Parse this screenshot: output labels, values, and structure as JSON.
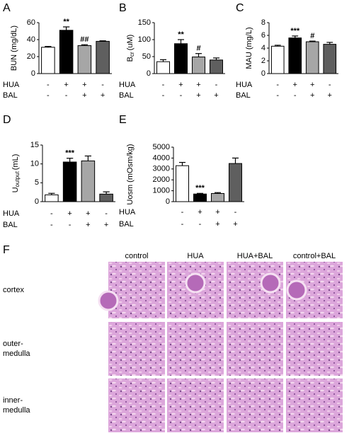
{
  "chart_data": [
    {
      "type": "bar",
      "panel": "A",
      "ylabel": [
        {
          "text": "BUN (mg/dL)"
        }
      ],
      "ylim": [
        0,
        60
      ],
      "yticks": [
        0,
        20,
        40,
        60
      ],
      "values": [
        31,
        51,
        33,
        38
      ],
      "errors": [
        1,
        4,
        1,
        0.6
      ],
      "significance": [
        null,
        "**",
        "##",
        null
      ],
      "colors": [
        "#ffffff",
        "#000000",
        "#a6a6a6",
        "#5f5f5f"
      ],
      "treatments": [
        {
          "name": "HUA",
          "signs": [
            "-",
            "+",
            "+",
            "-"
          ]
        },
        {
          "name": "BAL",
          "signs": [
            "-",
            "-",
            "+",
            "+"
          ]
        }
      ]
    },
    {
      "type": "bar",
      "panel": "B",
      "ylabel": [
        {
          "text": "B"
        },
        {
          "text": "cr",
          "sub": true
        },
        {
          "text": "(uM)"
        }
      ],
      "ylim": [
        0,
        150
      ],
      "yticks": [
        0,
        50,
        100,
        150
      ],
      "values": [
        35,
        88,
        49,
        40
      ],
      "errors": [
        6,
        12,
        10,
        6
      ],
      "significance": [
        null,
        "**",
        "#",
        null
      ],
      "colors": [
        "#ffffff",
        "#000000",
        "#a6a6a6",
        "#5f5f5f"
      ],
      "treatments": [
        {
          "name": "HUA",
          "signs": [
            "-",
            "+",
            "+",
            "-"
          ]
        },
        {
          "name": "BAL",
          "signs": [
            "-",
            "-",
            "+",
            "+"
          ]
        }
      ]
    },
    {
      "type": "bar",
      "panel": "C",
      "ylabel": [
        {
          "text": "MAU (mg/L)"
        }
      ],
      "ylim": [
        0,
        8
      ],
      "yticks": [
        0,
        2,
        4,
        6,
        8
      ],
      "values": [
        4.3,
        5.6,
        5.0,
        4.6
      ],
      "errors": [
        0.15,
        0.3,
        0.1,
        0.3
      ],
      "significance": [
        null,
        "***",
        "#",
        null
      ],
      "colors": [
        "#ffffff",
        "#000000",
        "#a6a6a6",
        "#5f5f5f"
      ],
      "treatments": [
        {
          "name": "HUA",
          "signs": [
            "-",
            "+",
            "+",
            "-"
          ]
        },
        {
          "name": "BAL",
          "signs": [
            "-",
            "-",
            "+",
            "+"
          ]
        }
      ]
    },
    {
      "type": "bar",
      "panel": "D",
      "ylabel": [
        {
          "text": "U"
        },
        {
          "text": "output",
          "sub": true
        },
        {
          "text": "(mL)"
        }
      ],
      "ylim": [
        0,
        15
      ],
      "yticks": [
        0,
        5,
        10,
        15
      ],
      "values": [
        1.8,
        10.5,
        10.8,
        2.0
      ],
      "errors": [
        0.4,
        1.0,
        1.3,
        0.6
      ],
      "significance": [
        null,
        "***",
        null,
        null
      ],
      "colors": [
        "#ffffff",
        "#000000",
        "#a6a6a6",
        "#5f5f5f"
      ],
      "treatments": [
        {
          "name": "HUA",
          "signs": [
            "-",
            "+",
            "+",
            "-"
          ]
        },
        {
          "name": "BAL",
          "signs": [
            "-",
            "-",
            "+",
            "+"
          ]
        }
      ]
    },
    {
      "type": "bar",
      "panel": "E",
      "ylabel": [
        {
          "text": "Uosm (mOsm/kg)"
        }
      ],
      "ylim": [
        0,
        5000
      ],
      "yticks": [
        0,
        1000,
        2000,
        3000,
        4000,
        5000
      ],
      "values": [
        3300,
        700,
        750,
        3500
      ],
      "errors": [
        300,
        60,
        80,
        500
      ],
      "significance": [
        null,
        "***",
        null,
        null
      ],
      "colors": [
        "#ffffff",
        "#000000",
        "#a6a6a6",
        "#5f5f5f"
      ],
      "treatments": [
        {
          "name": "HUA",
          "signs": [
            "-",
            "+",
            "+",
            "-"
          ]
        },
        {
          "name": "BAL",
          "signs": [
            "-",
            "-",
            "+",
            "+"
          ]
        }
      ]
    }
  ],
  "histology": {
    "panel": "F",
    "columns": [
      "control",
      "HUA",
      "HUA+BAL",
      "control+BAL"
    ],
    "rows": [
      [
        "cortex"
      ],
      [
        "outer-",
        "medulla"
      ],
      [
        "inner-",
        "medulla"
      ]
    ]
  }
}
